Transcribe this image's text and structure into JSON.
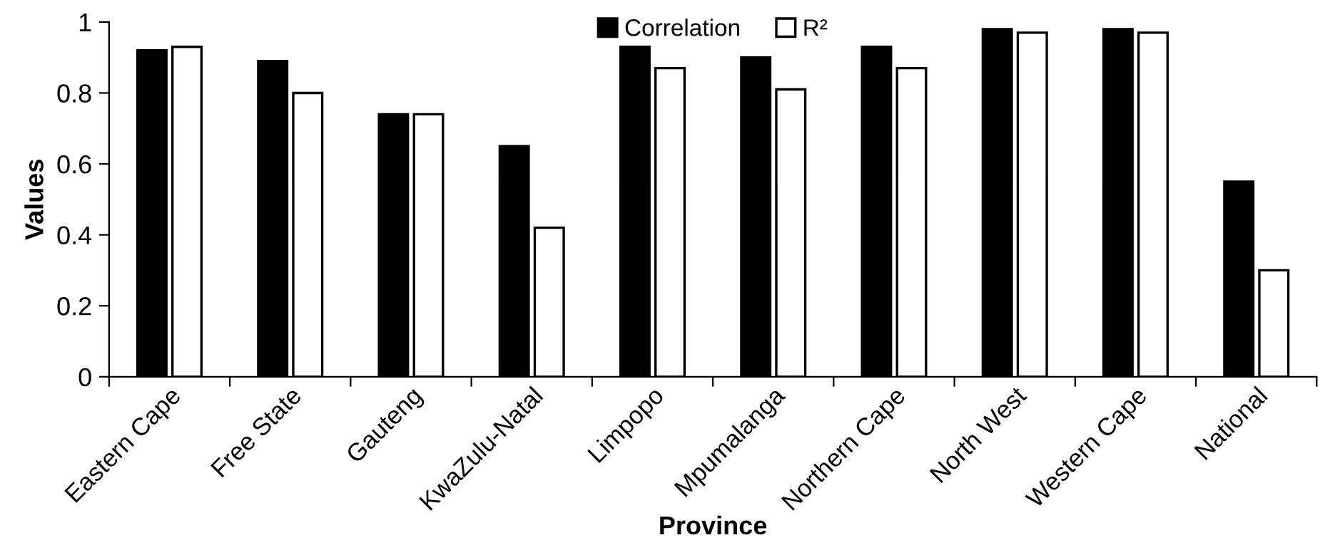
{
  "chart_data": {
    "type": "bar",
    "xlabel": "Province",
    "ylabel": "Values",
    "categories": [
      "Eastern Cape",
      "Free State",
      "Gauteng",
      "KwaZulu-Natal",
      "Limpopo",
      "Mpumalanga",
      "Northern Cape",
      "North West",
      "Western Cape",
      "National"
    ],
    "series": [
      {
        "name": "Correlation",
        "color": "#000000",
        "values": [
          0.92,
          0.89,
          0.74,
          0.65,
          0.93,
          0.9,
          0.93,
          0.98,
          0.98,
          0.55
        ]
      },
      {
        "name": "R²",
        "color": "#ffffff",
        "values": [
          0.93,
          0.8,
          0.74,
          0.42,
          0.87,
          0.81,
          0.87,
          0.97,
          0.97,
          0.3
        ]
      }
    ],
    "ylim": [
      0,
      1
    ],
    "yticks": [
      0,
      0.2,
      0.4,
      0.6,
      0.8,
      1
    ],
    "grid": false,
    "legend": "top"
  }
}
